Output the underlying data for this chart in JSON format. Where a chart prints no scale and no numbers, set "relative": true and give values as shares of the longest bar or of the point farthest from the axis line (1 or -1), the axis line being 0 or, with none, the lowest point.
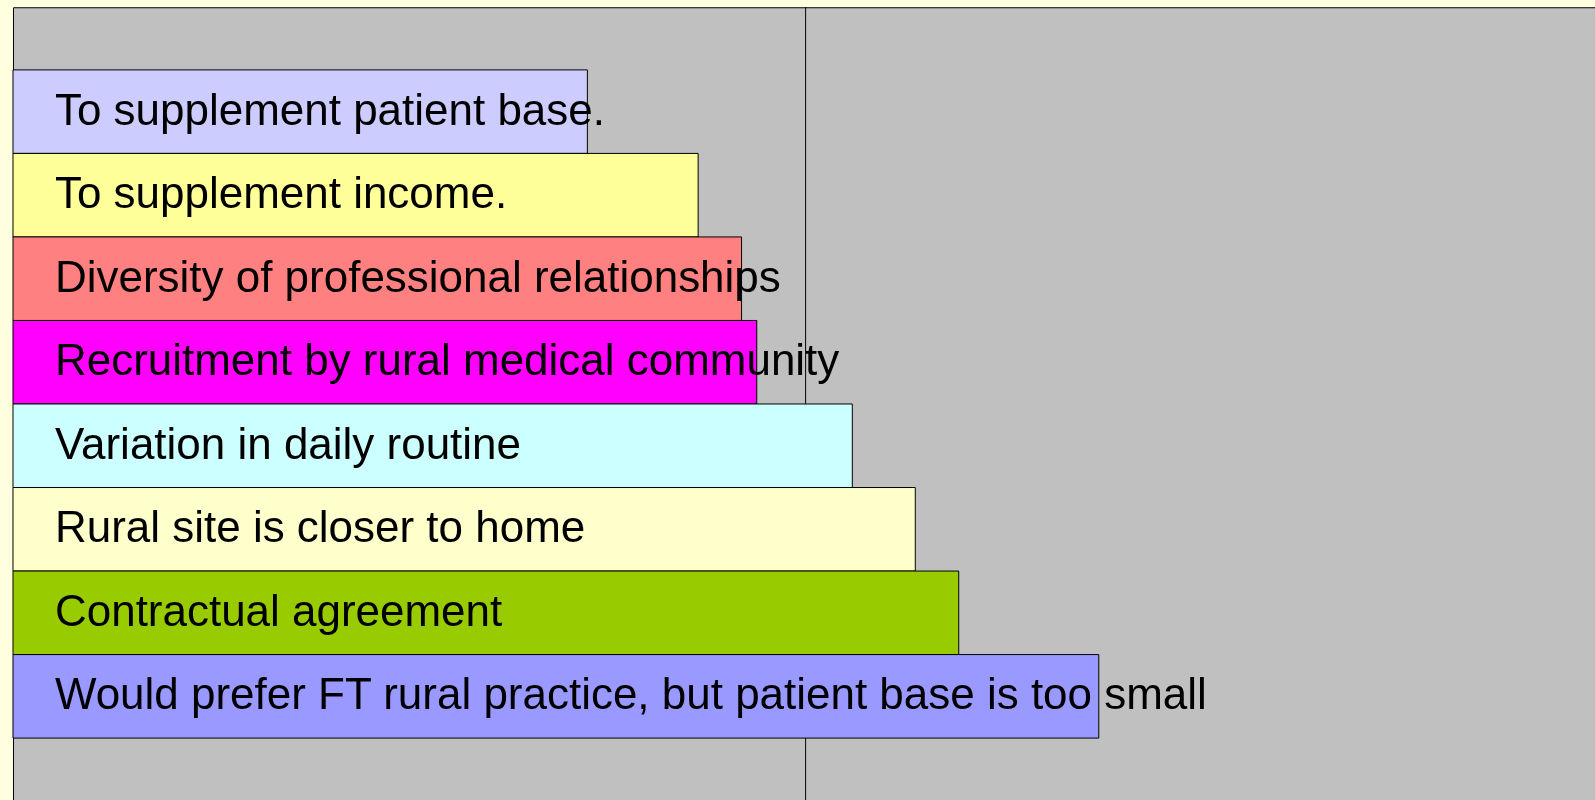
{
  "chart_data": {
    "type": "bar",
    "orientation": "horizontal",
    "relative": true,
    "categories": [
      "To supplement patient base.",
      "To supplement income.",
      "Diversity of professional relationships",
      "Recruitment by rural medical community",
      "Variation in daily routine",
      "Rural site is closer to home",
      "Contractual agreement",
      "Would prefer FT rural practice, but patient base is too small"
    ],
    "values": [
      0.529,
      0.631,
      0.671,
      0.685,
      0.773,
      0.831,
      0.871,
      1.0
    ],
    "colors": [
      "#ccccff",
      "#ffff99",
      "#ff8080",
      "#ff00ff",
      "#ccffff",
      "#ffffcc",
      "#99cc00",
      "#9999ff"
    ],
    "ref_lines": [
      {
        "axis": "x",
        "value": 0.73,
        "color": "#000000"
      }
    ]
  }
}
